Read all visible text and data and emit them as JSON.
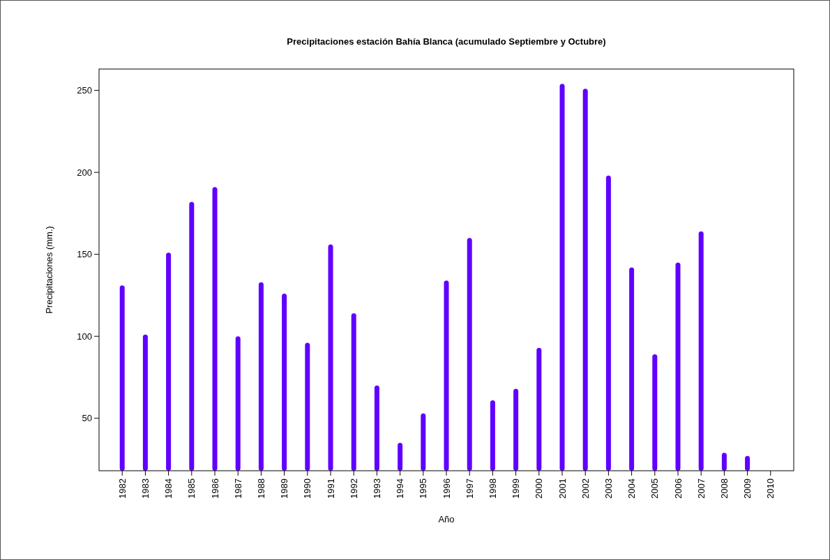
{
  "chart_data": {
    "type": "bar",
    "title": "Precipitaciones estación Bahía Blanca (acumulado Septiembre y Octubre)",
    "xlabel": "Año",
    "ylabel": "Precipitaciones (mm.)",
    "x": [
      1982,
      1983,
      1984,
      1985,
      1986,
      1987,
      1988,
      1989,
      1990,
      1991,
      1992,
      1993,
      1994,
      1995,
      1996,
      1997,
      1998,
      1999,
      2000,
      2001,
      2002,
      2003,
      2004,
      2005,
      2006,
      2007,
      2008,
      2009
    ],
    "values": [
      131,
      101,
      151,
      182,
      191,
      100,
      133,
      126,
      96,
      156,
      114,
      70,
      35,
      53,
      134,
      160,
      61,
      68,
      93,
      254,
      251,
      198,
      142,
      89,
      145,
      164,
      29,
      27
    ],
    "color": "#6000ff",
    "xlim": [
      1981,
      2011
    ],
    "xticks": [
      1982,
      1983,
      1984,
      1985,
      1986,
      1987,
      1988,
      1989,
      1990,
      1991,
      1992,
      1993,
      1994,
      1995,
      1996,
      1997,
      1998,
      1999,
      2000,
      2001,
      2002,
      2003,
      2004,
      2005,
      2006,
      2007,
      2008,
      2009,
      2010
    ],
    "ylim": [
      18,
      263
    ],
    "yticks": [
      50,
      100,
      150,
      200,
      250
    ],
    "grid": false
  }
}
